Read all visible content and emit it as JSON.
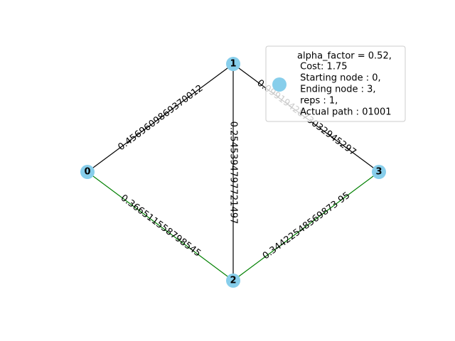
{
  "graph": {
    "nodes": [
      {
        "id": "0",
        "label": "0"
      },
      {
        "id": "1",
        "label": "1"
      },
      {
        "id": "2",
        "label": "2"
      },
      {
        "id": "3",
        "label": "3"
      }
    ],
    "edges": [
      {
        "from": "0",
        "to": "1",
        "label": "0.4569609869370012",
        "on_path": false
      },
      {
        "from": "1",
        "to": "3",
        "label": "0.0991942873032945297",
        "on_path": false
      },
      {
        "from": "1",
        "to": "2",
        "label": "0.2545394797721497",
        "on_path": false
      },
      {
        "from": "0",
        "to": "2",
        "label": "0.366511558798545",
        "on_path": true
      },
      {
        "from": "2",
        "to": "3",
        "label": "0.34422548569873 95",
        "on_path": true
      }
    ],
    "colors": {
      "node": "#87CEEB",
      "edge_default": "#000000",
      "edge_path": "#008000",
      "legend_border": "#cccccc"
    }
  },
  "legend": {
    "lines": [
      "alpha_factor = 0.52,",
      " Cost: 1.75",
      " Starting node : 0,",
      " Ending node : 3,",
      " reps : 1,",
      " Actual path : 01001"
    ]
  }
}
